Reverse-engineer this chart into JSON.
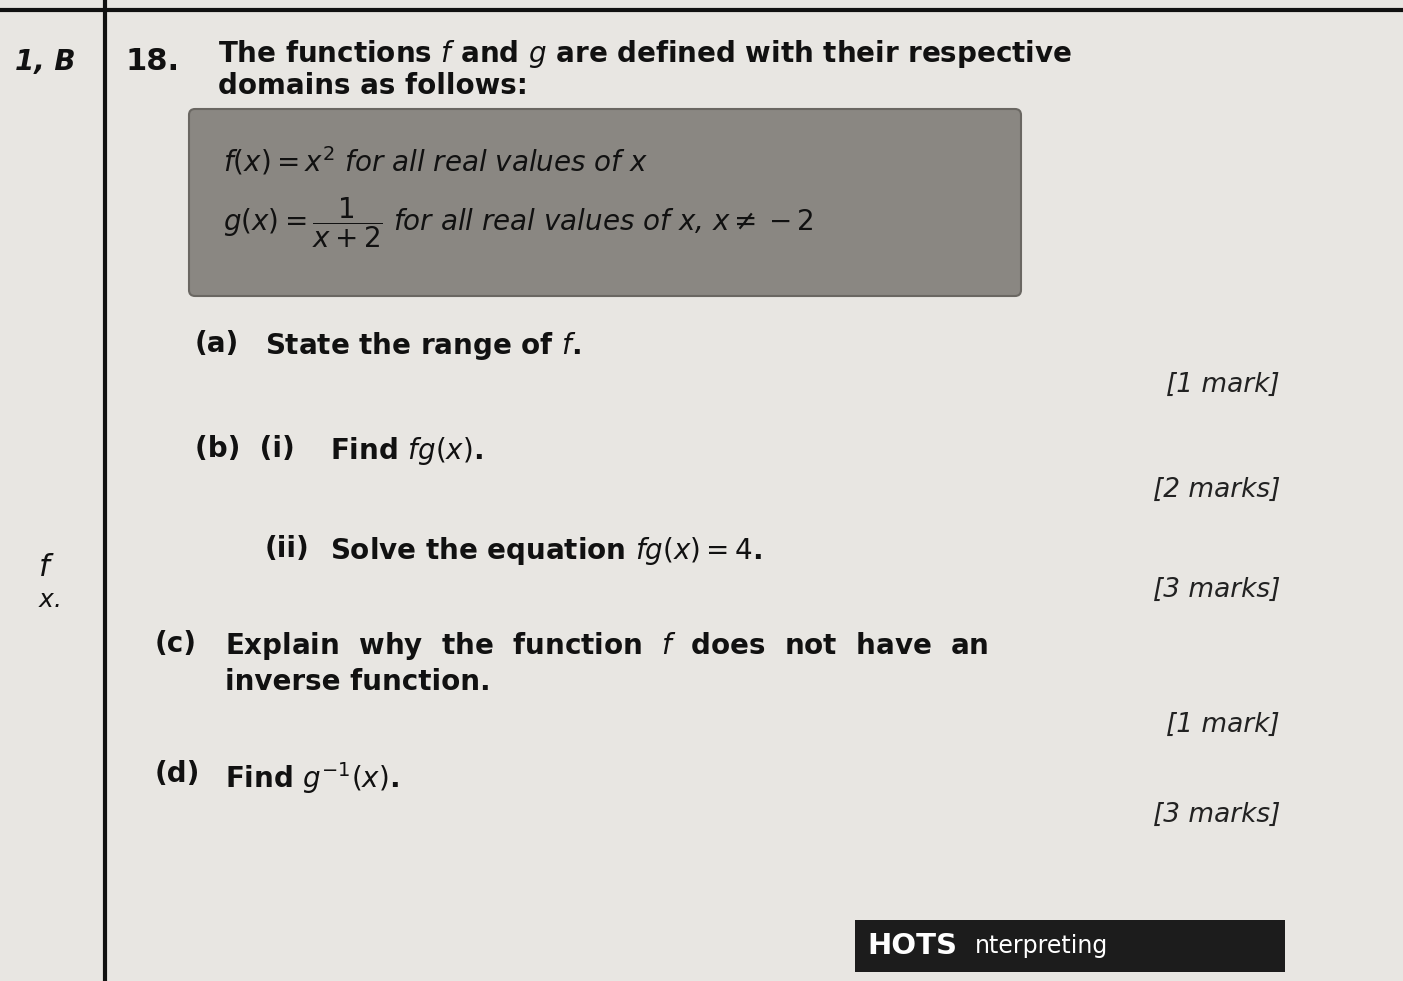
{
  "bg_color": "#c8c5c0",
  "paper_color": "#e8e6e2",
  "box_color": "#8a8782",
  "box_edge_color": "#6a6762",
  "circle_color": "none",
  "circle_edge_color": "#c04050",
  "line_color": "#111111",
  "text_color": "#111111",
  "marks_color": "#222222",
  "corner_label": "1, B",
  "question_number": "18.",
  "intro_line1": "The functions $f$ and $g$ are defined with their respective",
  "intro_line2": "domains as follows:",
  "box_line1": "$f(x) = x^2$ for all real values of $x$",
  "box_line2": "$g(x) = \\dfrac{1}{x+2}$ for all real values of $x$, $x \\neq -2$",
  "part_a_label": "(a)",
  "part_a_text": "State the range of $f$.",
  "part_a_marks": "[1 mark]",
  "part_b_label": "(b)  (i)",
  "part_b_text": "Find $fg(x)$.",
  "part_b_marks": "[2 marks]",
  "part_bii_label": "(ii)",
  "part_bii_text": "Solve the equation $fg(x) = 4$.",
  "part_bii_marks": "[3 marks]",
  "part_c_label": "(c)",
  "part_c_line1": "Explain  why  the  function  $f$  does  not  have  an",
  "part_c_line2": "inverse function.",
  "part_c_marks": "[1 mark]",
  "part_d_label": "(d)",
  "part_d_text": "Find $g^{-1}(x)$.",
  "part_d_marks": "[3 marks]",
  "left_f": "$f$",
  "left_x": "$x$.",
  "hots_label": "HOTS",
  "hots_subtext": "nterpreting",
  "main_fs": 20,
  "marks_fs": 19,
  "header_fs": 20
}
